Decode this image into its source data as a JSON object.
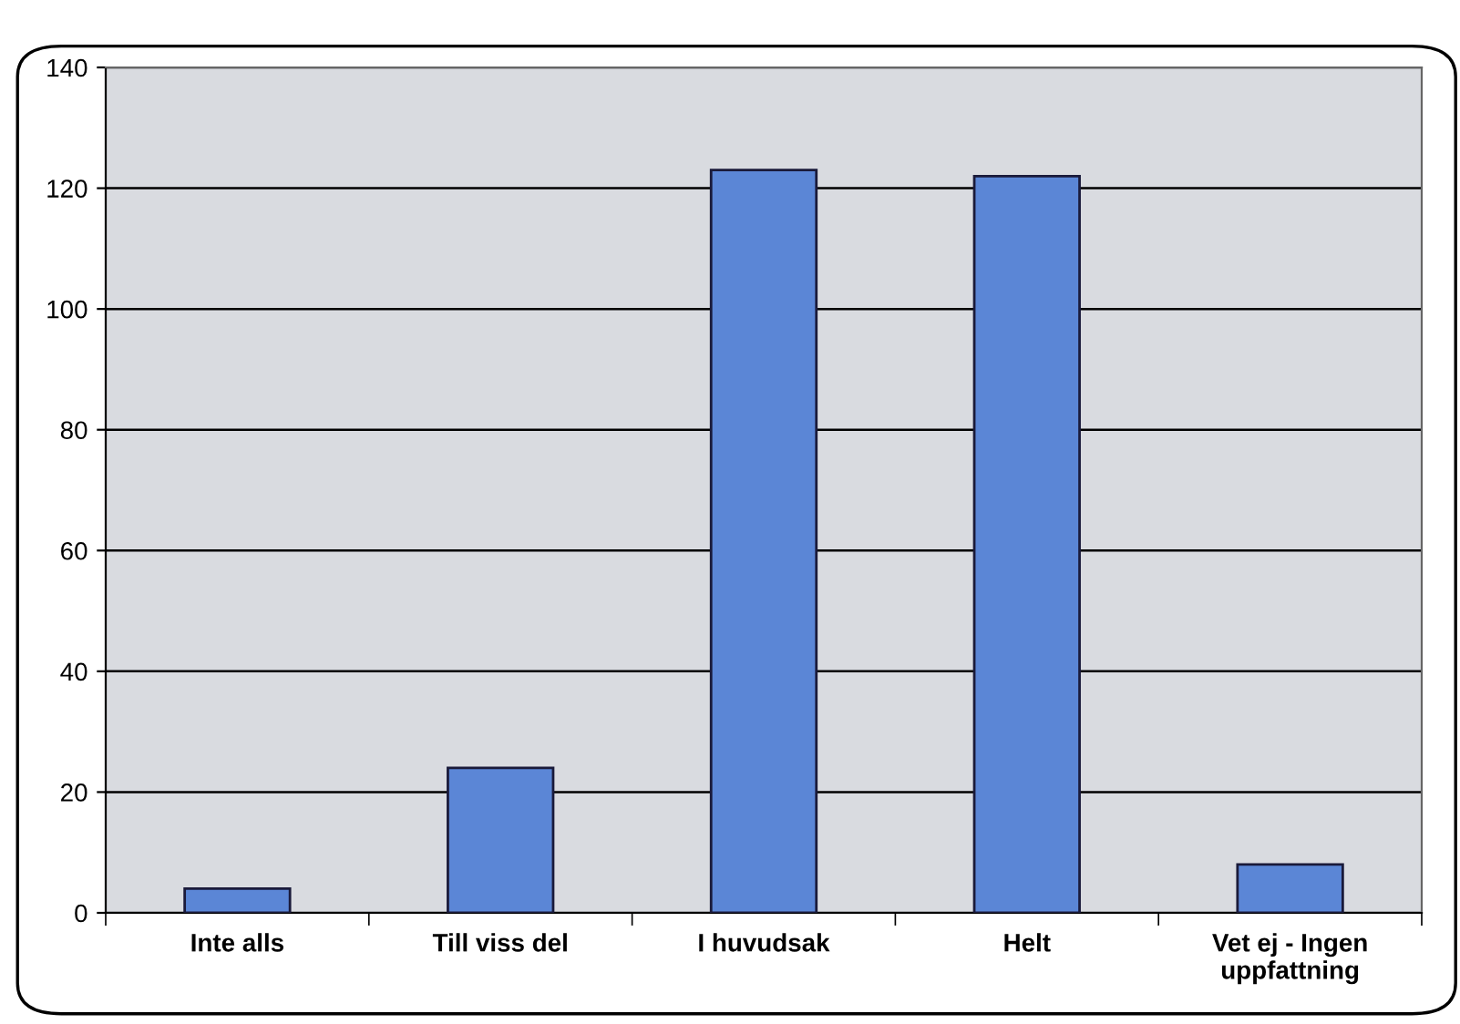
{
  "chart_data": {
    "type": "bar",
    "categories": [
      "Inte alls",
      "Till viss del",
      "I huvudsak",
      "Helt",
      "Vet ej - Ingen\nuppfattning"
    ],
    "values": [
      4,
      24,
      123,
      122,
      8
    ],
    "color": "#5b86d6",
    "ylim": [
      0,
      140
    ],
    "yticks": [
      0,
      20,
      40,
      60,
      80,
      100,
      120,
      140
    ],
    "grid": "y",
    "legend": false
  }
}
